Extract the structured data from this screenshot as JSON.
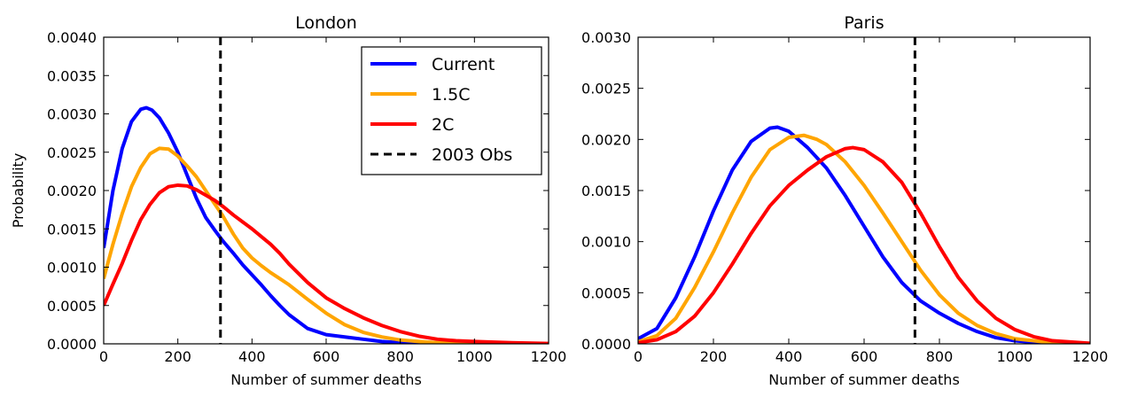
{
  "chart_data": [
    {
      "type": "line",
      "title": "London",
      "xlabel": "Number of summer deaths",
      "ylabel": "Probability",
      "xlim": [
        0,
        1200
      ],
      "ylim": [
        0,
        0.004
      ],
      "xticks": [
        "0",
        "200",
        "400",
        "600",
        "800",
        "1000",
        "1200"
      ],
      "yticks": [
        "0.0000",
        "0.0005",
        "0.0010",
        "0.0015",
        "0.0020",
        "0.0025",
        "0.0030",
        "0.0035",
        "0.0040"
      ],
      "grid": false,
      "legend": "top-right",
      "series": [
        {
          "name": "Current",
          "color": "#0000ff",
          "x": [
            0,
            25,
            50,
            75,
            100,
            115,
            130,
            150,
            175,
            200,
            225,
            250,
            275,
            300,
            320,
            350,
            375,
            400,
            425,
            450,
            475,
            500,
            550,
            600,
            650,
            700,
            750,
            800,
            850,
            900,
            1000,
            1100,
            1200
          ],
          "y": [
            0.00125,
            0.002,
            0.00255,
            0.0029,
            0.00306,
            0.00308,
            0.00305,
            0.00295,
            0.00275,
            0.0025,
            0.0022,
            0.0019,
            0.00165,
            0.00148,
            0.00135,
            0.00118,
            0.00103,
            0.0009,
            0.00077,
            0.00063,
            0.0005,
            0.00038,
            0.0002,
            0.00012,
            9e-05,
            6e-05,
            3e-05,
            1.5e-05,
            1e-05,
            5e-06,
            2e-06,
            1e-06,
            0.0
          ]
        },
        {
          "name": "1.5C",
          "color": "#ffa500",
          "x": [
            0,
            25,
            50,
            75,
            100,
            125,
            150,
            175,
            200,
            225,
            250,
            275,
            300,
            320,
            350,
            375,
            400,
            425,
            450,
            475,
            500,
            550,
            600,
            650,
            700,
            750,
            800,
            850,
            900,
            950,
            1000,
            1100,
            1200
          ],
          "y": [
            0.00085,
            0.0013,
            0.0017,
            0.00205,
            0.0023,
            0.00248,
            0.00255,
            0.00254,
            0.00245,
            0.00232,
            0.00218,
            0.002,
            0.00182,
            0.00168,
            0.00143,
            0.00125,
            0.00112,
            0.00102,
            0.00093,
            0.00085,
            0.00077,
            0.00058,
            0.0004,
            0.00025,
            0.00015,
            9e-05,
            5e-05,
            3e-05,
            1.5e-05,
            1e-05,
            6e-06,
            2e-06,
            0.0
          ]
        },
        {
          "name": "2C",
          "color": "#ff0000",
          "x": [
            0,
            25,
            50,
            75,
            100,
            125,
            150,
            175,
            200,
            225,
            250,
            275,
            300,
            325,
            350,
            375,
            400,
            425,
            450,
            475,
            500,
            550,
            600,
            650,
            700,
            750,
            800,
            850,
            900,
            950,
            1000,
            1100,
            1200
          ],
          "y": [
            0.0005,
            0.00078,
            0.00105,
            0.00135,
            0.00162,
            0.00182,
            0.00197,
            0.00205,
            0.00207,
            0.00206,
            0.00201,
            0.00194,
            0.00187,
            0.00178,
            0.00168,
            0.00159,
            0.0015,
            0.0014,
            0.0013,
            0.00118,
            0.00104,
            0.0008,
            0.0006,
            0.00046,
            0.00034,
            0.00024,
            0.00016,
            0.0001,
            6e-05,
            4e-05,
            3e-05,
            1.5e-05,
            5e-06
          ]
        }
      ],
      "reference_line": {
        "name": "2003 Obs",
        "x": 315,
        "style": "dashed",
        "color": "#000000"
      }
    },
    {
      "type": "line",
      "title": "Paris",
      "xlabel": "Number of summer deaths",
      "ylabel": "",
      "xlim": [
        0,
        1200
      ],
      "ylim": [
        0,
        0.003
      ],
      "xticks": [
        "0",
        "200",
        "400",
        "600",
        "800",
        "1000",
        "1200"
      ],
      "yticks": [
        "0.0000",
        "0.0005",
        "0.0010",
        "0.0015",
        "0.0020",
        "0.0025",
        "0.0030"
      ],
      "grid": false,
      "series": [
        {
          "name": "Current",
          "color": "#0000ff",
          "x": [
            0,
            50,
            100,
            150,
            200,
            250,
            300,
            350,
            370,
            400,
            450,
            500,
            550,
            600,
            650,
            700,
            750,
            800,
            850,
            900,
            950,
            1000,
            1050,
            1100,
            1200
          ],
          "y": [
            5e-05,
            0.00015,
            0.00045,
            0.00085,
            0.0013,
            0.0017,
            0.00198,
            0.00211,
            0.00212,
            0.00208,
            0.00192,
            0.00172,
            0.00145,
            0.00115,
            0.00085,
            0.0006,
            0.00042,
            0.0003,
            0.0002,
            0.00012,
            6e-05,
            3e-05,
            1.5e-05,
            5e-06,
            0.0
          ]
        },
        {
          "name": "1.5C",
          "color": "#ffa500",
          "x": [
            0,
            50,
            100,
            150,
            200,
            250,
            300,
            350,
            400,
            440,
            475,
            500,
            550,
            600,
            650,
            700,
            750,
            800,
            850,
            900,
            950,
            1000,
            1050,
            1100,
            1200
          ],
          "y": [
            2e-05,
            8e-05,
            0.00025,
            0.00055,
            0.0009,
            0.00128,
            0.00163,
            0.0019,
            0.00202,
            0.00204,
            0.002,
            0.00195,
            0.00178,
            0.00155,
            0.00128,
            0.001,
            0.00072,
            0.00048,
            0.0003,
            0.00018,
            0.0001,
            5e-05,
            3e-05,
            1e-05,
            0.0
          ]
        },
        {
          "name": "2C",
          "color": "#ff0000",
          "x": [
            0,
            50,
            100,
            150,
            200,
            250,
            300,
            350,
            400,
            450,
            500,
            550,
            570,
            600,
            650,
            700,
            750,
            800,
            850,
            900,
            950,
            1000,
            1050,
            1100,
            1200
          ],
          "y": [
            1e-05,
            4e-05,
            0.00012,
            0.00027,
            0.0005,
            0.00078,
            0.00108,
            0.00135,
            0.00155,
            0.0017,
            0.00183,
            0.00191,
            0.00192,
            0.0019,
            0.00178,
            0.00158,
            0.00128,
            0.00095,
            0.00065,
            0.00042,
            0.00025,
            0.00014,
            7e-05,
            3e-05,
            5e-06
          ]
        }
      ],
      "reference_line": {
        "name": "2003 Obs",
        "x": 735,
        "style": "dashed",
        "color": "#000000"
      }
    }
  ]
}
